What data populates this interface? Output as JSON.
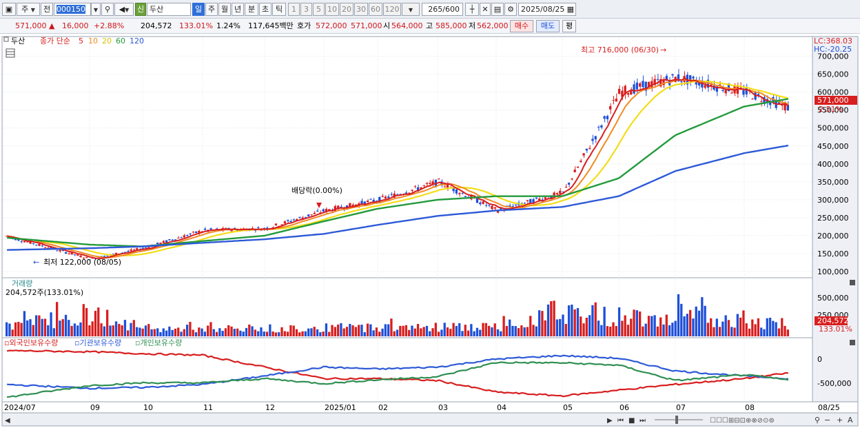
{
  "toolbar": {
    "market": "주",
    "prev": "전",
    "code": "000150",
    "new_badge": "신",
    "name": "두산",
    "periods": [
      "일",
      "주",
      "월",
      "년",
      "분",
      "초",
      "틱"
    ],
    "selected_period": "일",
    "intervals": [
      "1",
      "3",
      "5",
      "10",
      "20",
      "30",
      "60",
      "120"
    ],
    "count": "265",
    "count_max": "/600",
    "date": "2025/08/25"
  },
  "quote": {
    "price": "571,000",
    "arrow": "▲",
    "change": "16,000",
    "change_pct": "+2.88%",
    "volume": "204,572",
    "volume_ratio": "133.01%",
    "turnover_pct": "1.24%",
    "amount": "117,645백만",
    "ask_label": "호가",
    "ask": "572,000",
    "bid": "571,000",
    "open_label": "시",
    "open": "564,000",
    "high_label": "고",
    "high": "585,000",
    "low_label": "저",
    "low": "562,000",
    "buy_label": "매수",
    "sell_label": "매도",
    "eval_label": "평"
  },
  "legend": {
    "name": "두산",
    "type": "종가 단순",
    "ma": [
      {
        "period": "5",
        "color": "#d81e1e"
      },
      {
        "period": "10",
        "color": "#f08a24"
      },
      {
        "period": "20",
        "color": "#f2dd16"
      },
      {
        "period": "60",
        "color": "#239a3c"
      },
      {
        "period": "120",
        "color": "#2c59d8"
      }
    ]
  },
  "price_panel": {
    "lc": "LC:368.03",
    "hc": "HC:-20.25",
    "y_labels": [
      "700,000",
      "650,000",
      "600,000",
      "550,000",
      "500,000",
      "450,000",
      "400,000",
      "350,000",
      "300,000",
      "250,000",
      "200,000",
      "150,000",
      "100,000"
    ],
    "y_values": [
      700000,
      650000,
      600000,
      550000,
      500000,
      450000,
      400000,
      350000,
      300000,
      250000,
      200000,
      150000,
      100000
    ],
    "current_price": "571,000",
    "current_pct": "2.51%",
    "high_note": "최고 716,000 (06/30)",
    "low_note": "최저 122,000 (08/05)",
    "dividend_note": "배당락(0.00%)"
  },
  "volume_panel": {
    "title": "거래량",
    "summary": "204,572주(133.01%)",
    "y_labels": [
      "500,000",
      "250,000"
    ],
    "current": "204,572",
    "current_pct": "133.01%"
  },
  "holding_panel": {
    "foreign": "외국인보유수량",
    "institution": "기관보유수량",
    "individual": "개인보유수량",
    "y_labels": [
      "0",
      "-500,000"
    ]
  },
  "x_axis": {
    "labels": [
      "2024/07",
      "09",
      "10",
      "11",
      "12",
      "2025/01",
      "02",
      "03",
      "04",
      "05",
      "06",
      "07",
      "08",
      "08/25"
    ]
  },
  "colors": {
    "up": "#d81e1e",
    "down": "#1d4fd8",
    "ma5": "#d81e1e",
    "ma10": "#f08a24",
    "ma20": "#f2dd16",
    "ma60": "#239a3c",
    "ma120": "#2c59d8",
    "foreign": "#d81e1e",
    "institution": "#2c59d8",
    "individual": "#2f8f52"
  },
  "chart_data": [
    {
      "type": "line",
      "series": [
        {
          "name": "5",
          "x": [
            "2024/07",
            "09",
            "10",
            "11",
            "12",
            "2025/01",
            "02",
            "03",
            "04",
            "05",
            "06",
            "07",
            "08",
            "08/25"
          ],
          "values": [
            200000,
            135000,
            165000,
            215000,
            220000,
            270000,
            300000,
            350000,
            270000,
            320000,
            600000,
            640000,
            600000,
            555000
          ]
        },
        {
          "name": "60",
          "x": [
            "2024/07",
            "09",
            "10",
            "11",
            "12",
            "2025/01",
            "02",
            "03",
            "04",
            "05",
            "06",
            "07",
            "08",
            "08/25"
          ],
          "values": [
            195000,
            175000,
            170000,
            185000,
            200000,
            240000,
            275000,
            300000,
            310000,
            310000,
            360000,
            480000,
            560000,
            582000
          ]
        },
        {
          "name": "120",
          "x": [
            "2024/07",
            "09",
            "10",
            "11",
            "12",
            "2025/01",
            "02",
            "03",
            "04",
            "05",
            "06",
            "07",
            "08",
            "08/25"
          ],
          "values": [
            160000,
            165000,
            170000,
            180000,
            190000,
            205000,
            230000,
            255000,
            270000,
            280000,
            310000,
            380000,
            430000,
            452000
          ]
        }
      ],
      "ylim": [
        100000,
        730000
      ],
      "legend": "top-left"
    },
    {
      "type": "bar",
      "categories": [
        "2024/07",
        "09",
        "10",
        "11",
        "12",
        "2025/01",
        "02",
        "03",
        "04",
        "05",
        "06",
        "07",
        "08",
        "08/25"
      ],
      "series": [
        {
          "name": "거래량",
          "values": [
            280000,
            620000,
            220000,
            200000,
            210000,
            230000,
            250000,
            260000,
            240000,
            730000,
            520000,
            600000,
            480000,
            204572
          ]
        }
      ],
      "ylim": [
        0,
        800000
      ]
    },
    {
      "type": "line",
      "x": [
        "2024/07",
        "09",
        "10",
        "11",
        "12",
        "2025/01",
        "02",
        "03",
        "04",
        "05",
        "06",
        "07",
        "08",
        "08/25"
      ],
      "series": [
        {
          "name": "외국인보유수량",
          "values": [
            280000,
            250000,
            200000,
            160000,
            -150000,
            -450000,
            -450000,
            -500000,
            -800000,
            -900000,
            -750000,
            -600000,
            -450000,
            -300000
          ]
        },
        {
          "name": "기관보유수량",
          "values": [
            -600000,
            -700000,
            -680000,
            -600000,
            -380000,
            -150000,
            -200000,
            -150000,
            60000,
            150000,
            80000,
            -250000,
            -380000,
            -450000
          ]
        },
        {
          "name": "개인보유수량",
          "values": [
            -950000,
            -630000,
            -560000,
            -560000,
            -450000,
            -580000,
            -480000,
            -400000,
            -30000,
            -40000,
            -100000,
            -500000,
            -350000,
            -490000
          ]
        }
      ],
      "ylim": [
        -1000000,
        400000
      ]
    }
  ]
}
